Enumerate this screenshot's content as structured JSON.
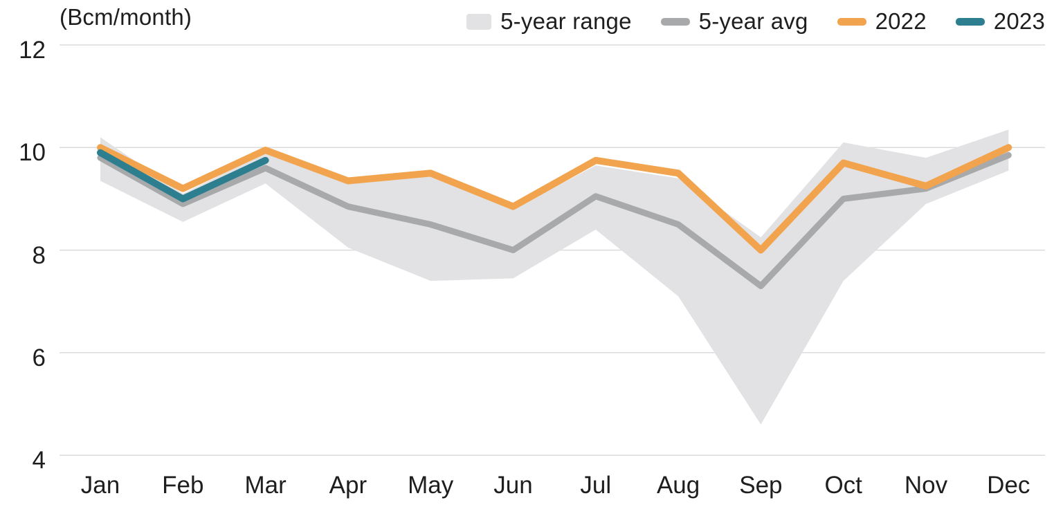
{
  "header": {
    "unit_label": "(Bcm/month)"
  },
  "chart_data": {
    "type": "line",
    "title": "",
    "unit_label": "(Bcm/month)",
    "xlabel": "",
    "ylabel": "Bcm/month",
    "categories": [
      "Jan",
      "Feb",
      "Mar",
      "Apr",
      "May",
      "Jun",
      "Jul",
      "Aug",
      "Sep",
      "Oct",
      "Nov",
      "Dec"
    ],
    "y_ticks": [
      12,
      10,
      8,
      6,
      4
    ],
    "ylim": [
      4,
      12
    ],
    "grid": true,
    "legend_position": "top-right",
    "background_color": "#ffffff",
    "gridline_color": "#dbdbdd",
    "text_color": "#1e1e1e",
    "series": [
      {
        "name": "5-year range",
        "type": "band",
        "color": "#e2e2e4",
        "upper": [
          10.2,
          9.1,
          9.9,
          9.3,
          9.45,
          8.8,
          9.65,
          9.4,
          8.25,
          10.1,
          9.8,
          10.35
        ],
        "lower": [
          9.35,
          8.55,
          9.3,
          8.05,
          7.4,
          7.45,
          8.4,
          7.1,
          4.6,
          7.4,
          8.9,
          9.55
        ]
      },
      {
        "name": "5-year avg",
        "type": "line",
        "color": "#a7a9ab",
        "stroke_width": 9,
        "values": [
          9.8,
          8.9,
          9.6,
          8.85,
          8.5,
          8.0,
          9.05,
          8.5,
          7.3,
          9.0,
          9.2,
          9.85
        ]
      },
      {
        "name": "2022",
        "type": "line",
        "color": "#f2a34d",
        "stroke_width": 10,
        "values": [
          10.0,
          9.2,
          9.95,
          9.35,
          9.5,
          8.85,
          9.75,
          9.5,
          8.0,
          9.7,
          9.25,
          10.0
        ]
      },
      {
        "name": "2023",
        "type": "line",
        "color": "#2d7f90",
        "stroke_width": 10,
        "values": [
          9.9,
          9.0,
          9.75,
          null,
          null,
          null,
          null,
          null,
          null,
          null,
          null,
          null
        ]
      }
    ]
  }
}
